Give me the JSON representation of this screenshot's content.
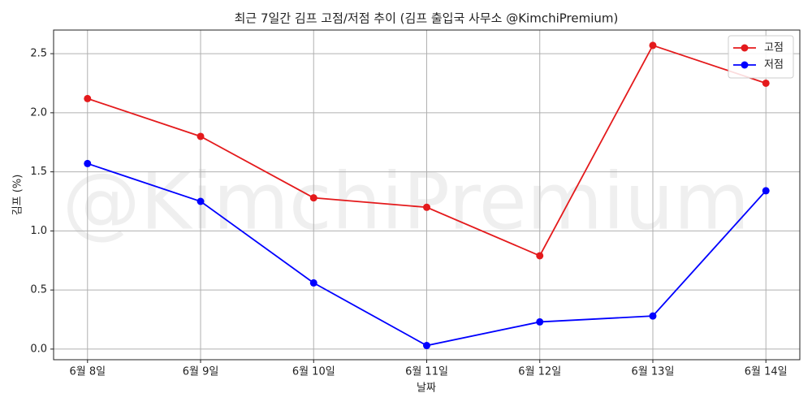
{
  "chart_data": {
    "type": "line",
    "title": "최근 7일간 김프 고점/저점 추이 (김프 출입국 사무소 @KimchiPremium)",
    "watermark": "@KimchiPremium",
    "x_label": "날짜",
    "y_label": "김프 (%)",
    "categories": [
      "6월 8일",
      "6월 9일",
      "6월 10일",
      "6월 11일",
      "6월 12일",
      "6월 13일",
      "6월 14일"
    ],
    "series": [
      {
        "name": "고점",
        "color": "#e41a1c",
        "values": [
          2.12,
          1.8,
          1.28,
          1.2,
          0.79,
          2.57,
          2.25
        ]
      },
      {
        "name": "저점",
        "color": "#0000ff",
        "values": [
          1.57,
          1.25,
          0.56,
          0.03,
          0.23,
          0.28,
          1.34
        ]
      }
    ],
    "ylim": [
      -0.09,
      2.7
    ],
    "yticks": [
      {
        "value": 0,
        "label": "0.0"
      },
      0.5,
      {
        "value": 1,
        "label": "1.0"
      },
      1.5,
      {
        "value": 2,
        "label": "2.0"
      },
      2.5
    ],
    "grid": true,
    "legend": "upper right"
  }
}
